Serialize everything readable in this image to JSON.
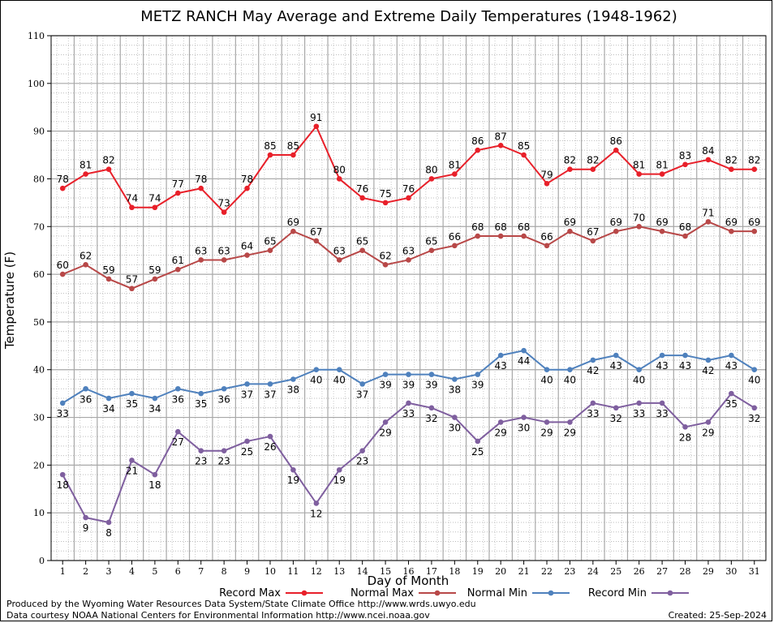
{
  "chart_data": {
    "type": "line",
    "title": "METZ RANCH May Average and Extreme Daily Temperatures (1948-1962)",
    "xlabel": "Day of Month",
    "ylabel": "Temperature (F)",
    "x": [
      1,
      2,
      3,
      4,
      5,
      6,
      7,
      8,
      9,
      10,
      11,
      12,
      13,
      14,
      15,
      16,
      17,
      18,
      19,
      20,
      21,
      22,
      23,
      24,
      25,
      26,
      27,
      28,
      29,
      30,
      31
    ],
    "ylim": [
      0,
      110
    ],
    "yticks": [
      0,
      10,
      20,
      30,
      40,
      50,
      60,
      70,
      80,
      90,
      100,
      110
    ],
    "grid": true,
    "legend_position": "bottom",
    "series": [
      {
        "name": "Record Max",
        "color": "#e8202a",
        "label_position": "above",
        "values": [
          78,
          81,
          82,
          74,
          74,
          77,
          78,
          73,
          78,
          85,
          85,
          91,
          80,
          76,
          75,
          76,
          80,
          81,
          86,
          87,
          85,
          79,
          82,
          82,
          86,
          81,
          81,
          83,
          84,
          82,
          82
        ]
      },
      {
        "name": "Normal Max",
        "color": "#b84848",
        "label_position": "above",
        "values": [
          60,
          62,
          59,
          57,
          59,
          61,
          63,
          63,
          64,
          65,
          69,
          67,
          63,
          65,
          62,
          63,
          65,
          66,
          68,
          68,
          68,
          66,
          69,
          67,
          69,
          70,
          69,
          68,
          71,
          69,
          69
        ]
      },
      {
        "name": "Normal Min",
        "color": "#4f81bd",
        "label_position": "below",
        "values": [
          33,
          36,
          34,
          35,
          34,
          36,
          35,
          36,
          37,
          37,
          38,
          40,
          40,
          37,
          39,
          39,
          39,
          38,
          39,
          43,
          44,
          40,
          40,
          42,
          43,
          40,
          43,
          43,
          42,
          43,
          40
        ]
      },
      {
        "name": "Record Min",
        "color": "#7f5f9f",
        "label_position": "below",
        "values": [
          18,
          9,
          8,
          21,
          18,
          27,
          23,
          23,
          25,
          26,
          19,
          12,
          19,
          23,
          29,
          33,
          32,
          30,
          25,
          29,
          30,
          29,
          29,
          33,
          32,
          33,
          33,
          28,
          29,
          35,
          32
        ]
      }
    ]
  },
  "footer": {
    "produced_by": "Produced by the Wyoming Water Resources Data System/State Climate Office http://www.wrds.uwyo.edu",
    "data_courtesy": "Data courtesy NOAA National Centers for Environmental Information http://www.ncei.noaa.gov",
    "created": "Created:  25-Sep-2024"
  }
}
